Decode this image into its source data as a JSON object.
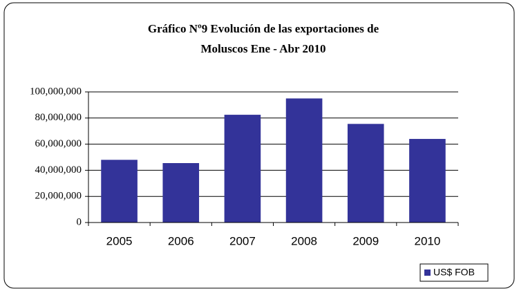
{
  "chart_data": {
    "type": "bar",
    "title": [
      "Gráfico Nº9 Evolución de las exportaciones de",
      "Moluscos Ene - Abr 2010"
    ],
    "categories": [
      "2005",
      "2006",
      "2007",
      "2008",
      "2009",
      "2010"
    ],
    "series": [
      {
        "name": "US$ FOB",
        "color": "#333399",
        "values": [
          48000000,
          45500000,
          82500000,
          95000000,
          75500000,
          64000000
        ]
      }
    ],
    "ylim": [
      0,
      100000000
    ],
    "yticks": [
      0,
      {
        "value": 20000000,
        "label": "20,000,000"
      },
      {
        "value": 40000000,
        "label": "40,000,000"
      },
      {
        "value": 60000000,
        "label": "60,000,000"
      },
      {
        "value": 80000000,
        "label": "80,000,000"
      },
      {
        "value": 100000000,
        "label": "100,000,000"
      }
    ],
    "grid": true,
    "legend": "bottom-right"
  }
}
